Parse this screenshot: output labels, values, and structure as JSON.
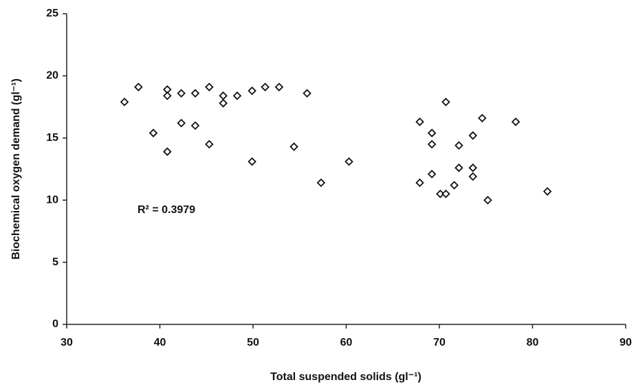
{
  "chart_data": {
    "type": "scatter",
    "x_label": "Total suspended solids (gl⁻¹)",
    "y_label": "Biochemical oxygen demand (gl⁻¹)",
    "annotation": "R² = 0.3979",
    "x": [
      36.2,
      37.7,
      39.3,
      40.8,
      40.8,
      40.8,
      42.3,
      42.3,
      43.8,
      43.8,
      45.3,
      45.3,
      46.8,
      46.8,
      48.3,
      49.9,
      49.9,
      51.3,
      52.8,
      54.4,
      55.8,
      57.3,
      60.3,
      67.9,
      67.9,
      69.2,
      69.2,
      69.2,
      70.1,
      70.7,
      70.7,
      71.6,
      72.1,
      72.1,
      73.6,
      73.6,
      73.6,
      74.6,
      75.2,
      78.2,
      81.6
    ],
    "values": [
      17.9,
      19.1,
      15.4,
      18.9,
      18.4,
      13.9,
      18.6,
      16.2,
      18.6,
      16.0,
      19.1,
      14.5,
      18.4,
      17.8,
      18.4,
      18.8,
      13.1,
      19.1,
      19.1,
      14.3,
      18.6,
      11.4,
      13.1,
      16.3,
      11.4,
      15.4,
      14.5,
      12.1,
      10.5,
      10.5,
      17.9,
      11.2,
      14.4,
      12.6,
      15.2,
      12.6,
      11.9,
      16.6,
      10.0,
      16.3,
      10.7
    ],
    "color": "#111111",
    "xlim": [
      30,
      90
    ],
    "xticks": [
      30,
      40,
      50,
      60,
      70,
      80,
      90
    ],
    "ylim": [
      0,
      25
    ],
    "yticks": [
      0,
      5,
      10,
      15,
      20,
      25
    ],
    "grid": false
  }
}
